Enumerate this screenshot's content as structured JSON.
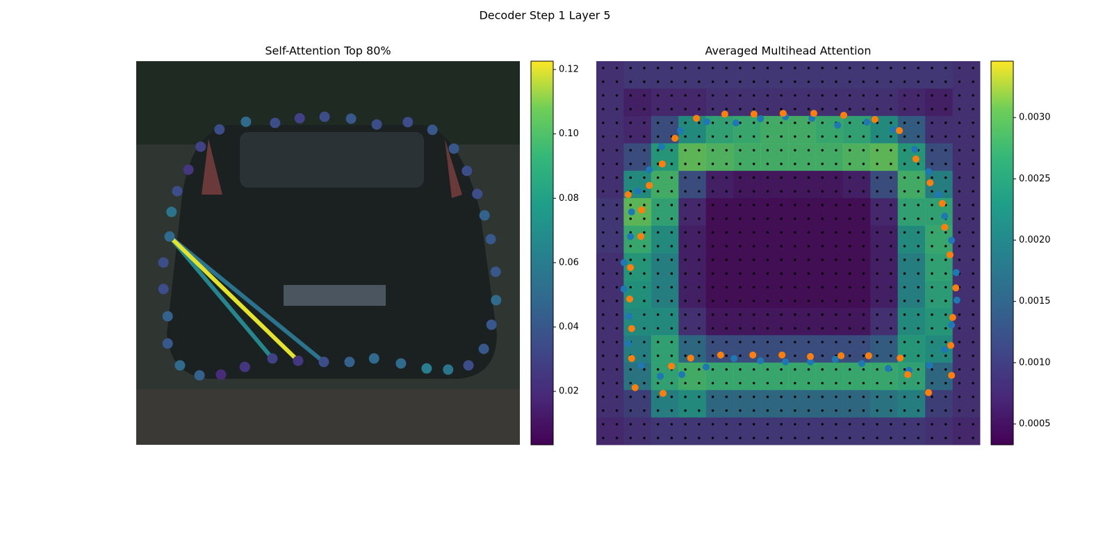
{
  "title": "Decoder Step 1 Layer 5",
  "chart_data": [
    {
      "type": "scatter",
      "title": "Self-Attention Top 80%",
      "cmap": "viridis",
      "clim": [
        0.0034,
        0.1226
      ],
      "cticks": [
        0.02,
        0.04,
        0.06,
        0.08,
        {
          "value": 0.1,
          "label": "0.10"
        },
        0.12
      ],
      "x": [
        0.217,
        0.286,
        0.362,
        0.426,
        0.491,
        0.56,
        0.627,
        0.708,
        0.772,
        0.828,
        0.862,
        0.889,
        0.908,
        0.924,
        0.937,
        0.938,
        0.926,
        0.906,
        0.866,
        0.813,
        0.757,
        0.69,
        0.62,
        0.556,
        0.489,
        0.422,
        0.355,
        0.283,
        0.221,
        0.165,
        0.114,
        0.082,
        0.082,
        0.071,
        0.071,
        0.087,
        0.092,
        0.107,
        0.136,
        0.168
      ],
      "y": [
        0.178,
        0.158,
        0.161,
        0.149,
        0.145,
        0.15,
        0.165,
        0.159,
        0.179,
        0.228,
        0.286,
        0.346,
        0.402,
        0.464,
        0.549,
        0.623,
        0.687,
        0.75,
        0.793,
        0.804,
        0.801,
        0.788,
        0.775,
        0.784,
        0.784,
        0.781,
        0.775,
        0.797,
        0.817,
        0.819,
        0.793,
        0.736,
        0.665,
        0.594,
        0.525,
        0.457,
        0.393,
        0.339,
        0.283,
        0.223
      ],
      "values": [
        0.035,
        0.05,
        0.035,
        0.03,
        0.035,
        0.04,
        0.035,
        0.035,
        0.04,
        0.04,
        0.035,
        0.035,
        0.045,
        0.04,
        0.04,
        0.05,
        0.04,
        0.04,
        0.035,
        0.055,
        0.06,
        0.05,
        0.05,
        0.045,
        0.035,
        0.025,
        0.03,
        0.025,
        0.02,
        0.045,
        0.05,
        0.04,
        0.045,
        0.035,
        0.035,
        0.05,
        0.055,
        0.035,
        0.025,
        0.03
      ],
      "links": {
        "from": 35,
        "to": [
          25,
          26,
          24
        ],
        "values": [
          0.12,
          0.065,
          0.055
        ]
      }
    },
    {
      "type": "heatmap",
      "title": "Averaged Multihead Attention",
      "cmap": "viridis",
      "clim": [
        0.00033,
        0.00346
      ],
      "cticks": [
        0.0005,
        {
          "value": 0.001,
          "label": "0.0010"
        },
        0.0015,
        {
          "value": 0.002,
          "label": "0.0020"
        },
        0.0025,
        {
          "value": 0.003,
          "label": "0.0030"
        }
      ],
      "heatmap": [
        [
          0.0008,
          0.0009,
          0.0009,
          0.0009,
          0.0009,
          0.0009,
          0.0009,
          0.0009,
          0.0009,
          0.0009,
          0.0009,
          0.0009,
          0.0009,
          0.0008
        ],
        [
          0.0008,
          0.0006,
          0.0007,
          0.0007,
          0.0008,
          0.0008,
          0.0008,
          0.0008,
          0.0008,
          0.0008,
          0.0008,
          0.0007,
          0.0006,
          0.0008
        ],
        [
          0.0008,
          0.0007,
          0.0012,
          0.0022,
          0.0026,
          0.0027,
          0.0028,
          0.0028,
          0.0027,
          0.0026,
          0.0022,
          0.0014,
          0.0008,
          0.0008
        ],
        [
          0.0008,
          0.0012,
          0.0024,
          0.003,
          0.0029,
          0.0028,
          0.0028,
          0.0028,
          0.0028,
          0.0029,
          0.003,
          0.0024,
          0.0012,
          0.0008
        ],
        [
          0.0008,
          0.0022,
          0.0028,
          0.0012,
          0.0006,
          0.0005,
          0.0005,
          0.0005,
          0.0005,
          0.0006,
          0.0012,
          0.0028,
          0.002,
          0.0008
        ],
        [
          0.0009,
          0.003,
          0.0026,
          0.0007,
          0.0004,
          0.0004,
          0.0004,
          0.0004,
          0.0004,
          0.0004,
          0.0007,
          0.0026,
          0.0026,
          0.0008
        ],
        [
          0.0009,
          0.0027,
          0.0022,
          0.0006,
          0.0004,
          0.0004,
          0.0004,
          0.0004,
          0.0004,
          0.0004,
          0.0006,
          0.0022,
          0.0027,
          0.0008
        ],
        [
          0.0008,
          0.0024,
          0.002,
          0.0006,
          0.0004,
          0.0004,
          0.0004,
          0.0004,
          0.0004,
          0.0004,
          0.0006,
          0.002,
          0.0026,
          0.0008
        ],
        [
          0.0008,
          0.0023,
          0.002,
          0.0006,
          0.0004,
          0.0004,
          0.0004,
          0.0004,
          0.0004,
          0.0004,
          0.0006,
          0.002,
          0.0025,
          0.0008
        ],
        [
          0.0008,
          0.0022,
          0.0022,
          0.0008,
          0.0005,
          0.0005,
          0.0005,
          0.0005,
          0.0005,
          0.0005,
          0.0008,
          0.0022,
          0.0024,
          0.0008
        ],
        [
          0.0008,
          0.002,
          0.0026,
          0.0016,
          0.0012,
          0.0012,
          0.0012,
          0.0012,
          0.0012,
          0.0012,
          0.0014,
          0.0024,
          0.0022,
          0.0008
        ],
        [
          0.0008,
          0.0018,
          0.0026,
          0.0028,
          0.0027,
          0.0027,
          0.0027,
          0.0027,
          0.0027,
          0.0027,
          0.0027,
          0.0026,
          0.0016,
          0.0008
        ],
        [
          0.0008,
          0.001,
          0.002,
          0.0022,
          0.0016,
          0.0016,
          0.0016,
          0.0016,
          0.0016,
          0.0016,
          0.0018,
          0.002,
          0.001,
          0.0008
        ],
        [
          0.0007,
          0.0008,
          0.0009,
          0.0009,
          0.0009,
          0.0009,
          0.0009,
          0.0009,
          0.0009,
          0.0009,
          0.0009,
          0.0009,
          0.0008,
          0.0007
        ]
      ],
      "series": [
        {
          "color": "#1f77b4",
          "x": [
            0.288,
            0.364,
            0.428,
            0.493,
            0.562,
            0.629,
            0.705,
            0.774,
            0.83,
            0.866,
            0.891,
            0.908,
            0.926,
            0.938,
            0.94,
            0.926,
            0.908,
            0.868,
            0.815,
            0.761,
            0.692,
            0.623,
            0.558,
            0.493,
            0.428,
            0.359,
            0.286,
            0.223,
            0.167,
            0.116,
            0.083,
            0.085,
            0.072,
            0.072,
            0.089,
            0.092,
            0.109,
            0.138,
            0.17,
            0.219
          ],
          "y": [
            0.158,
            0.161,
            0.15,
            0.145,
            0.149,
            0.167,
            0.159,
            0.179,
            0.23,
            0.288,
            0.348,
            0.404,
            0.467,
            0.551,
            0.623,
            0.688,
            0.752,
            0.793,
            0.806,
            0.801,
            0.788,
            0.777,
            0.784,
            0.784,
            0.781,
            0.775,
            0.797,
            0.817,
            0.821,
            0.793,
            0.736,
            0.665,
            0.594,
            0.525,
            0.457,
            0.393,
            0.339,
            0.283,
            0.223,
            0.181
          ]
        },
        {
          "color": "#ff7f0e",
          "x": [
            0.261,
            0.335,
            0.411,
            0.487,
            0.567,
            0.645,
            0.726,
            0.79,
            0.833,
            0.87,
            0.902,
            0.908,
            0.922,
            0.937,
            0.929,
            0.924,
            0.926,
            0.866,
            0.812,
            0.792,
            0.71,
            0.638,
            0.558,
            0.484,
            0.408,
            0.324,
            0.246,
            0.196,
            0.174,
            0.101,
            0.092,
            0.092,
            0.087,
            0.089,
            0.116,
            0.118,
            0.138,
            0.172,
            0.205,
            0.083
          ],
          "y": [
            0.149,
            0.138,
            0.138,
            0.136,
            0.136,
            0.141,
            0.152,
            0.181,
            0.255,
            0.317,
            0.371,
            0.433,
            0.505,
            0.591,
            0.668,
            0.741,
            0.819,
            0.864,
            0.817,
            0.774,
            0.768,
            0.768,
            0.77,
            0.766,
            0.766,
            0.766,
            0.774,
            0.795,
            0.866,
            0.851,
            0.775,
            0.697,
            0.62,
            0.538,
            0.457,
            0.388,
            0.324,
            0.268,
            0.201,
            0.348
          ]
        }
      ]
    }
  ]
}
